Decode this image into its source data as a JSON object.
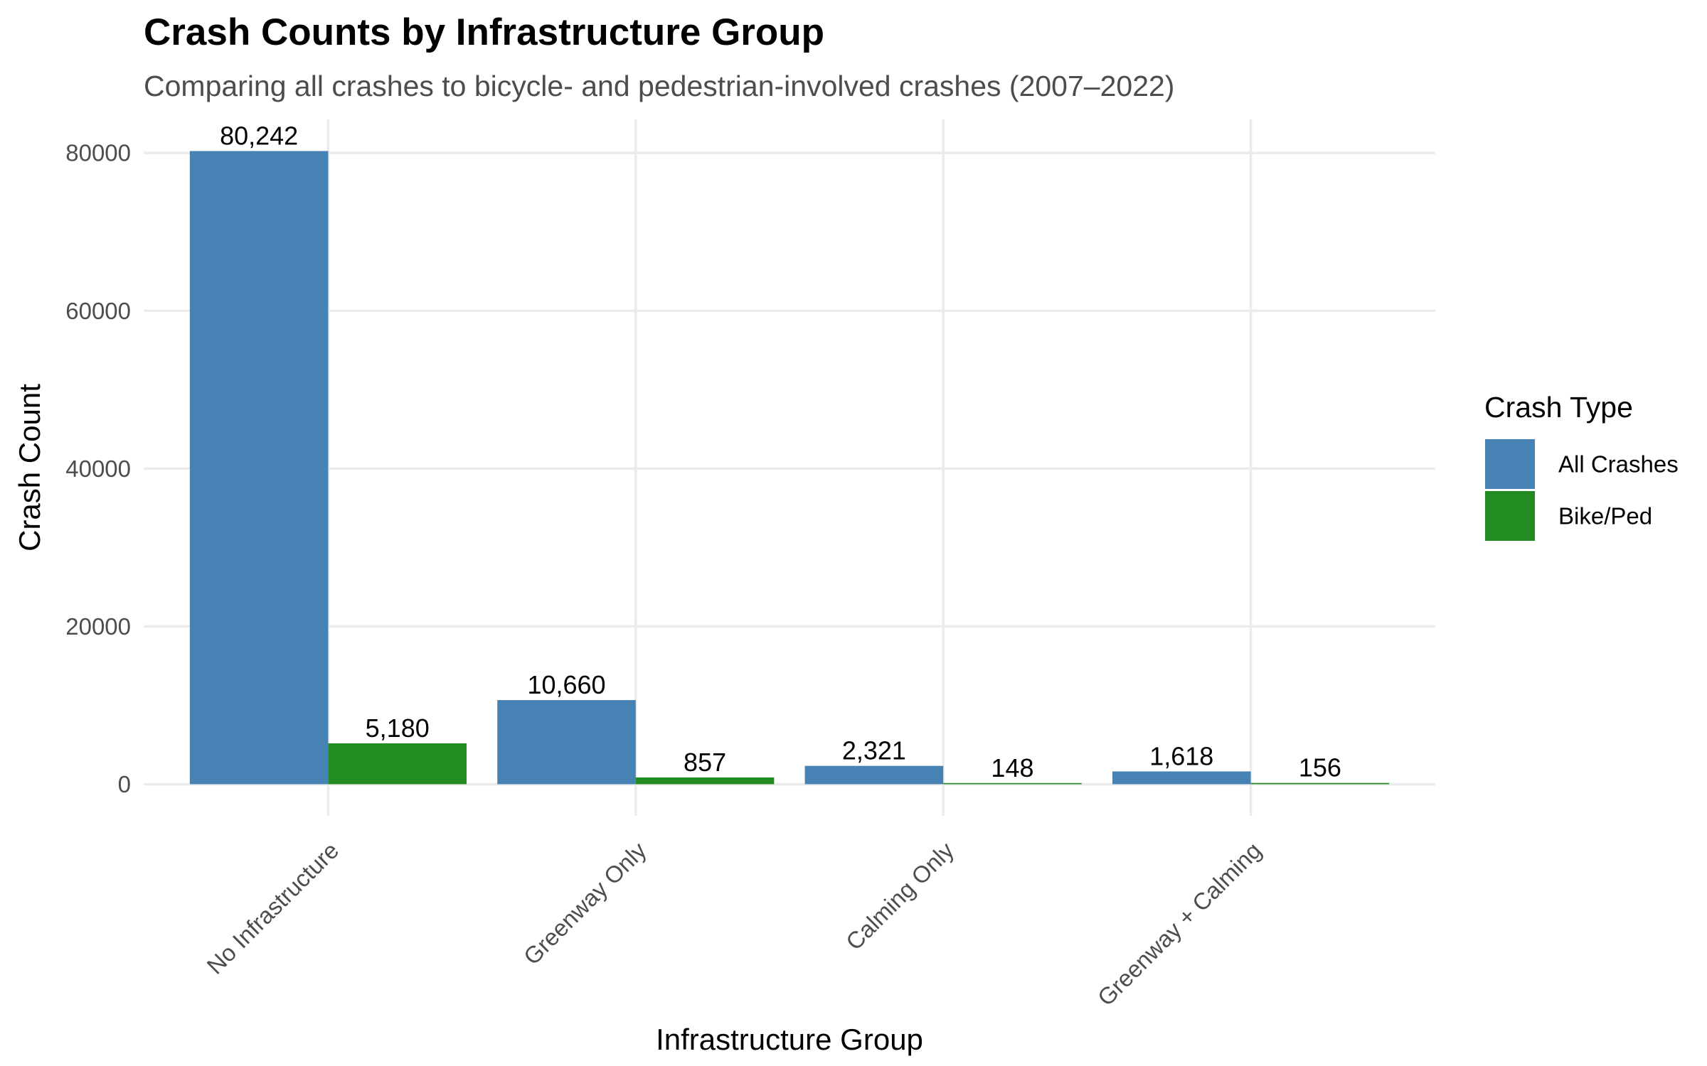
{
  "chart_data": {
    "type": "bar",
    "title": "Crash Counts by Infrastructure Group",
    "subtitle": "Comparing all crashes to bicycle- and pedestrian-involved crashes (2007–2022)",
    "xlabel": "Infrastructure Group",
    "ylabel": "Crash Count",
    "categories": [
      "No Infrastructure",
      "Greenway Only",
      "Calming Only",
      "Greenway + Calming"
    ],
    "series": [
      {
        "name": "All Crashes",
        "color": "#4682b4",
        "values": [
          80242,
          10660,
          2321,
          1618
        ],
        "labels": [
          "80,242",
          "10,660",
          "2,321",
          "1,618"
        ]
      },
      {
        "name": "Bike/Ped",
        "color": "#228b22",
        "values": [
          5180,
          857,
          148,
          156
        ],
        "labels": [
          "5,180",
          "857",
          "148",
          "156"
        ]
      }
    ],
    "yticks": [
      0,
      20000,
      40000,
      60000,
      80000
    ],
    "ytick_labels": [
      "0",
      "20000",
      "40000",
      "60000",
      "80000"
    ],
    "ylim": [
      -4012,
      84254
    ],
    "grid": true,
    "legend": {
      "title": "Crash Type",
      "placement": "right"
    }
  }
}
